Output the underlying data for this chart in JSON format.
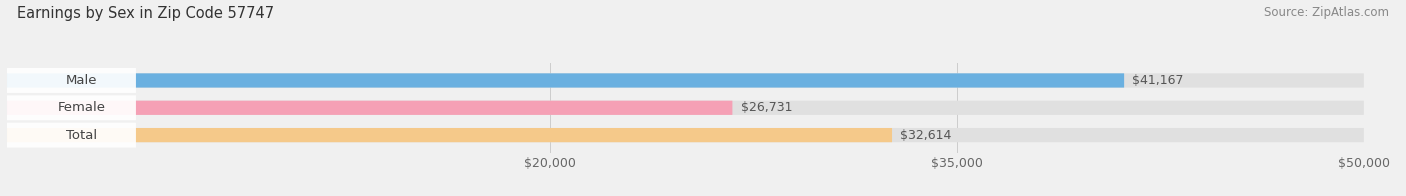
{
  "title": "Earnings by Sex in Zip Code 57747",
  "source": "Source: ZipAtlas.com",
  "categories": [
    "Male",
    "Female",
    "Total"
  ],
  "values": [
    41167,
    26731,
    32614
  ],
  "bar_colors": [
    "#6ab0e0",
    "#f5a0b5",
    "#f5c98a"
  ],
  "value_labels": [
    "$41,167",
    "$26,731",
    "$32,614"
  ],
  "xmin": 0,
  "xmax": 50000,
  "xticks": [
    20000,
    35000,
    50000
  ],
  "xtick_labels": [
    "$20,000",
    "$35,000",
    "$50,000"
  ],
  "background_color": "#f0f0f0",
  "bar_background_color": "#e0e0e0",
  "title_fontsize": 10.5,
  "source_fontsize": 8.5,
  "label_fontsize": 9.5,
  "value_fontsize": 9,
  "tick_fontsize": 9,
  "bar_height": 0.52
}
